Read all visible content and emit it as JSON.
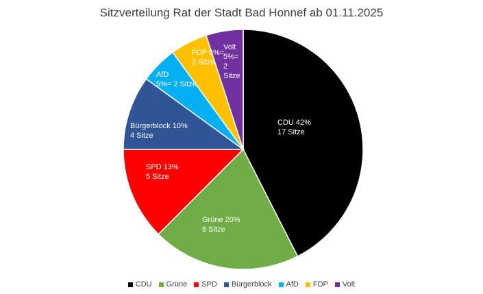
{
  "chart_data": {
    "type": "pie",
    "title": "Sitzverteilung Rat der Stadt Bad  Honnef ab 01.11.2025",
    "slices": [
      {
        "name": "CDU",
        "value": 17,
        "color": "#000000",
        "label_lines": [
          "CDU 42%",
          "17 Sitze"
        ],
        "label_color": "#ffffff"
      },
      {
        "name": "Grüne",
        "value": 8,
        "color": "#70ad47",
        "label_lines": [
          "Grüne 20%",
          "8 Sitze"
        ],
        "label_color": "#ffffff"
      },
      {
        "name": "SPD",
        "value": 5,
        "color": "#ff0000",
        "label_lines": [
          "SPD 13%",
          "5 Sitze"
        ],
        "label_color": "#ffffff"
      },
      {
        "name": "Bürgerblock",
        "value": 4,
        "color": "#2f5597",
        "label_lines": [
          "Bürgerblock 10%",
          "4 Sitze"
        ],
        "label_color": "#ffffff"
      },
      {
        "name": "AfD",
        "value": 2,
        "color": "#00b0f0",
        "label_lines": [
          "AfD",
          "5%= 2 Sitze"
        ],
        "label_color": "#ffffff"
      },
      {
        "name": "FDP",
        "value": 2,
        "color": "#ffc000",
        "label_lines": [
          "FDP 5%=",
          "2 Sitze"
        ],
        "label_color": "#ffffff"
      },
      {
        "name": "Volt",
        "value": 2,
        "color": "#7030a0",
        "label_lines": [
          "Volt",
          "5%=",
          "2",
          "Sitze"
        ],
        "label_color": "#ffffff"
      }
    ],
    "legend_position": "bottom"
  }
}
